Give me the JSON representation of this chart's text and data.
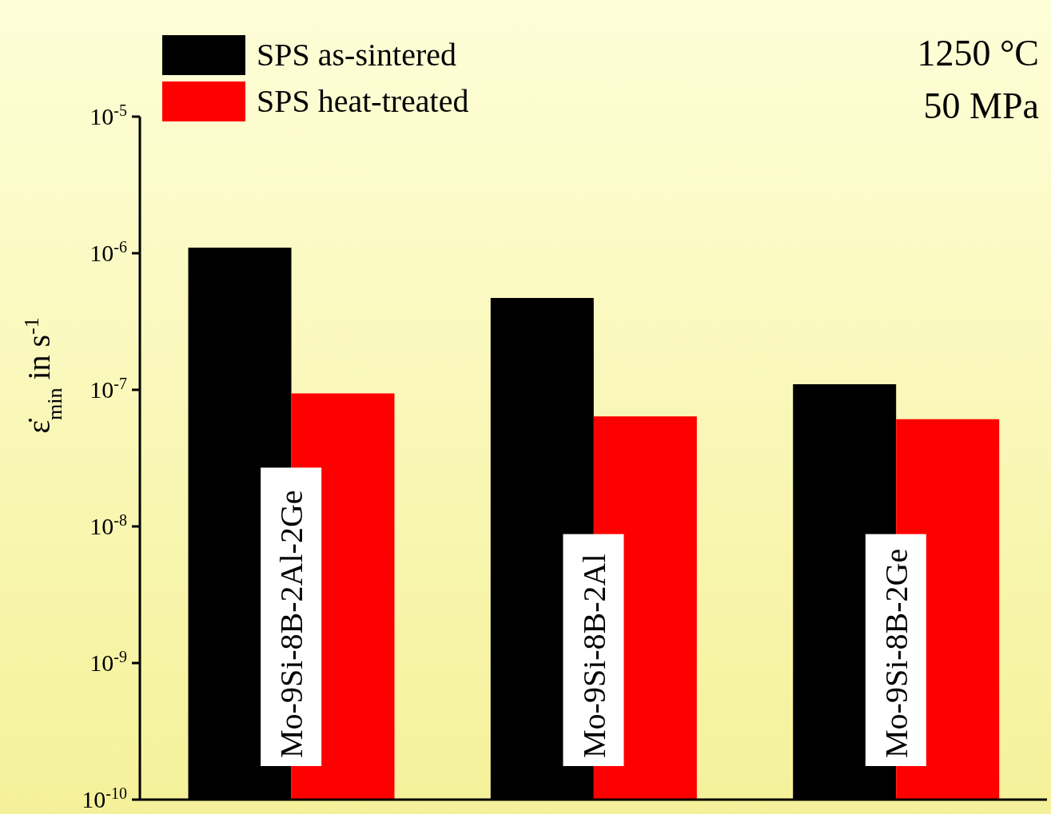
{
  "chart_data": {
    "type": "bar",
    "ylabel": "ε̇$_{min}$ in s$^{-1}$",
    "categories": [
      "Mo-9Si-8B-2Al-2Ge",
      "Mo-9Si-8B-2Al",
      "Mo-9Si-8B-2Ge"
    ],
    "series": [
      {
        "name": "SPS as-sintered",
        "color": "#000000",
        "values": [
          1.1e-06,
          4.7e-07,
          1.1e-07
        ]
      },
      {
        "name": "SPS heat-treated",
        "color": "#ff0000",
        "values": [
          9.4e-08,
          6.4e-08,
          6.1e-08
        ]
      }
    ],
    "log": true,
    "ylim": [
      1e-10,
      1e-05
    ],
    "yticks": [
      {
        "value": 1e-10,
        "label": "10$^{-10}$"
      },
      {
        "value": 1e-09,
        "label": "10$^{-9}$"
      },
      {
        "value": 1e-08,
        "label": "10$^{-8}$"
      },
      {
        "value": 1e-07,
        "label": "10$^{-7}$"
      },
      {
        "value": 1e-06,
        "label": "10$^{-6}$"
      },
      {
        "value": 1e-05,
        "label": "10$^{-5}$"
      }
    ],
    "legend": "top left",
    "grid": false,
    "annotations": [
      "1250 °C",
      "50 MPa"
    ]
  }
}
